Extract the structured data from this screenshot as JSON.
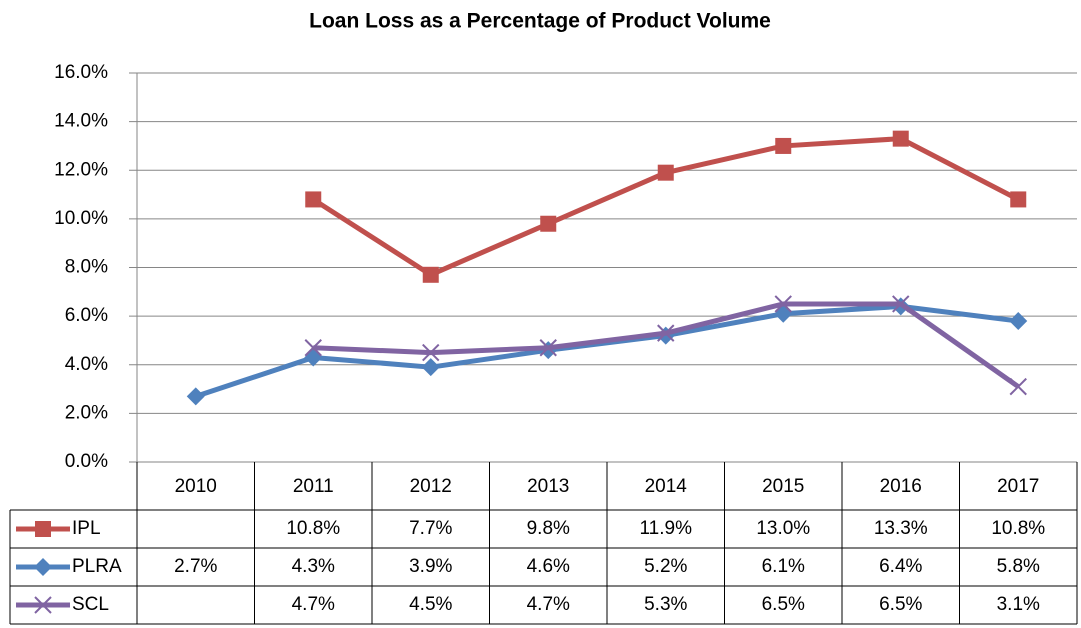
{
  "chart_data": {
    "type": "line",
    "title": "Loan Loss as a Percentage of Product Volume",
    "categories": [
      "2010",
      "2011",
      "2012",
      "2013",
      "2014",
      "2015",
      "2016",
      "2017"
    ],
    "series": [
      {
        "name": "IPL",
        "color": "#c0504d",
        "marker": "square",
        "values": [
          null,
          10.8,
          7.7,
          9.8,
          11.9,
          13.0,
          13.3,
          10.8
        ],
        "value_labels": [
          null,
          "10.8%",
          "7.7%",
          "9.8%",
          "11.9%",
          "13.0%",
          "13.3%",
          "10.8%"
        ]
      },
      {
        "name": "PLRA",
        "color": "#4f81bd",
        "marker": "diamond",
        "values": [
          2.7,
          4.3,
          3.9,
          4.6,
          5.2,
          6.1,
          6.4,
          5.8
        ],
        "value_labels": [
          "2.7%",
          "4.3%",
          "3.9%",
          "4.6%",
          "5.2%",
          "6.1%",
          "6.4%",
          "5.8%"
        ]
      },
      {
        "name": "SCL",
        "color": "#8064a2",
        "marker": "x",
        "values": [
          null,
          4.7,
          4.5,
          4.7,
          5.3,
          6.5,
          6.5,
          3.1
        ],
        "value_labels": [
          null,
          "4.7%",
          "4.5%",
          "4.7%",
          "5.3%",
          "6.5%",
          "6.5%",
          "3.1%"
        ]
      }
    ],
    "ylim": [
      0,
      16
    ],
    "yticks": [
      {
        "value": 0,
        "label": "0.0%"
      },
      {
        "value": 2,
        "label": "2.0%"
      },
      {
        "value": 4,
        "label": "4.0%"
      },
      {
        "value": 6,
        "label": "6.0%"
      },
      {
        "value": 8,
        "label": "8.0%"
      },
      {
        "value": 10,
        "label": "10.0%"
      },
      {
        "value": 12,
        "label": "12.0%"
      },
      {
        "value": 14,
        "label": "14.0%"
      },
      {
        "value": 16,
        "label": "16.0%"
      }
    ],
    "grid": true
  }
}
